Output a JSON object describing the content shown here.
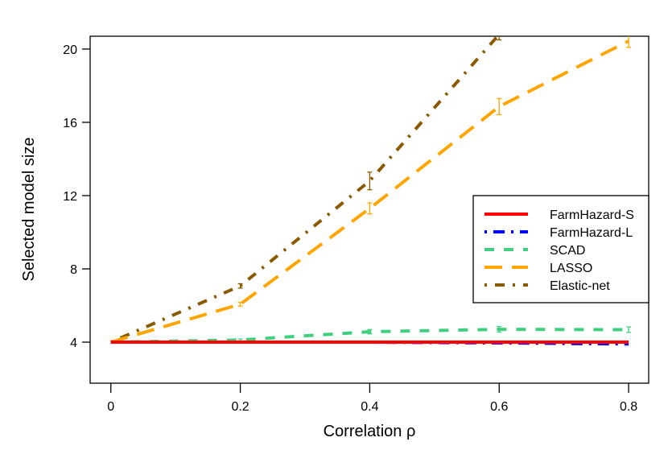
{
  "chart_data": {
    "type": "line",
    "title": "",
    "xlabel": "Correlation ρ",
    "ylabel": "Selected model size",
    "x": [
      0,
      0.2,
      0.4,
      0.6,
      0.8
    ],
    "xticks": [
      "0",
      "0.2",
      "0.4",
      "0.6",
      "0.8"
    ],
    "yticks": [
      "4",
      "8",
      "12",
      "16",
      "20"
    ],
    "xlim": [
      -0.032,
      0.831
    ],
    "ylim": [
      1.76,
      20.7
    ],
    "grid": false,
    "legend_position": "right",
    "series": [
      {
        "name": "FarmHazard-S",
        "color": "#ff0000",
        "dash": "solid",
        "values": [
          4,
          4,
          4,
          4,
          4
        ],
        "err": [
          0,
          0,
          0,
          0,
          0
        ]
      },
      {
        "name": "FarmHazard-L",
        "color": "#0000ff",
        "dash": "dotdash",
        "values": [
          4,
          4,
          4,
          3.96,
          3.9
        ],
        "err": [
          0,
          0,
          0,
          0,
          0
        ]
      },
      {
        "name": "SCAD",
        "color": "#3fcf7f",
        "dash": "dashed",
        "values": [
          4,
          4.12,
          4.57,
          4.7,
          4.68
        ],
        "err": [
          0,
          0.05,
          0.12,
          0.15,
          0.15
        ]
      },
      {
        "name": "LASSO",
        "color": "#ffa500",
        "dash": "longdash",
        "values": [
          4,
          6.07,
          11.3,
          16.86,
          20.44
        ],
        "err": [
          0,
          0.1,
          0.3,
          0.44,
          0.35
        ]
      },
      {
        "name": "Elastic-net",
        "color": "#8b5a00",
        "dash": "twodash",
        "values": [
          4,
          7.07,
          12.8,
          20.8,
          null
        ],
        "err": [
          0,
          0.12,
          0.48,
          0.3,
          0
        ]
      }
    ]
  }
}
